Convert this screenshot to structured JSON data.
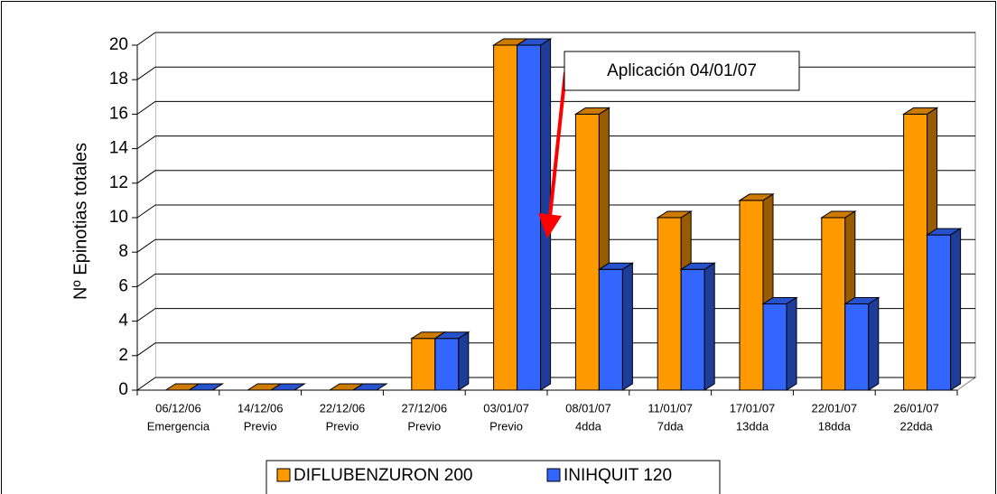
{
  "chart_data": {
    "type": "bar3d",
    "ylabel": "Nº Epinotias totales",
    "categories": [
      [
        "06/12/06",
        "Emergencia"
      ],
      [
        "14/12/06",
        "Previo"
      ],
      [
        "22/12/06",
        "Previo"
      ],
      [
        "27/12/06",
        "Previo"
      ],
      [
        "03/01/07",
        "Previo"
      ],
      [
        "08/01/07",
        "4dda"
      ],
      [
        "11/01/07",
        "7dda"
      ],
      [
        "17/01/07",
        "13dda"
      ],
      [
        "22/01/07",
        "18dda"
      ],
      [
        "26/01/07",
        "22dda"
      ]
    ],
    "series": [
      {
        "name": "DIFLUBENZURON 200",
        "color": "#ff9900",
        "values": [
          0,
          0,
          0,
          3,
          20,
          16,
          10,
          11,
          10,
          16
        ]
      },
      {
        "name": "INIHQUIT 120",
        "color": "#3366ff",
        "values": [
          0,
          0,
          0,
          3,
          20,
          7,
          7,
          5,
          5,
          9
        ]
      }
    ],
    "ylim": [
      0,
      20
    ],
    "yticks": [
      0,
      2,
      4,
      6,
      8,
      10,
      12,
      14,
      16,
      18,
      20
    ],
    "grid": true,
    "annotation": "Aplicación 04/01/07"
  }
}
